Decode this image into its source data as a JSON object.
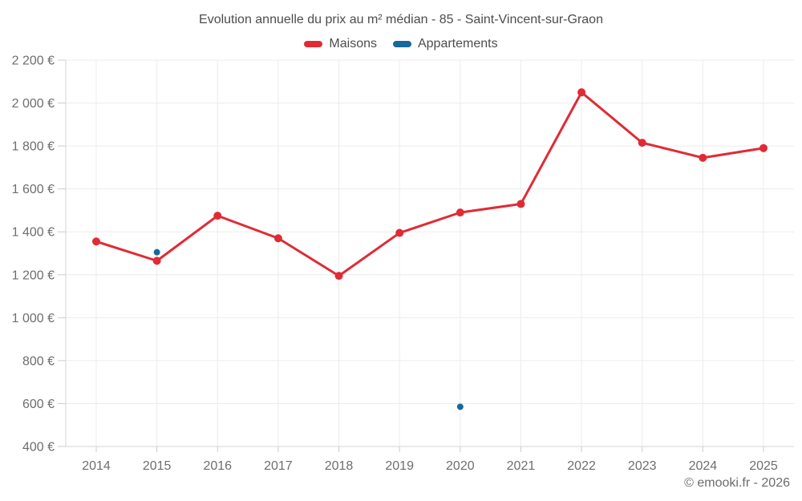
{
  "chart_data": {
    "type": "line",
    "title": "Evolution annuelle du prix au m² médian - 85 - Saint-Vincent-sur-Graon",
    "categories": [
      "2014",
      "2015",
      "2016",
      "2017",
      "2018",
      "2019",
      "2020",
      "2021",
      "2022",
      "2023",
      "2024",
      "2025"
    ],
    "series": [
      {
        "name": "Maisons",
        "color": "#e02b35",
        "style": "line-with-markers",
        "values": [
          1355,
          1265,
          1475,
          1370,
          1195,
          1395,
          1490,
          1530,
          2050,
          1815,
          1745,
          1790
        ]
      },
      {
        "name": "Appartements",
        "color": "#17699c",
        "style": "markers-only",
        "values": [
          null,
          1305,
          null,
          null,
          null,
          null,
          585,
          null,
          null,
          null,
          null,
          null
        ]
      }
    ],
    "ylim": [
      400,
      2200
    ],
    "y_tick_step": 200,
    "y_ticks": [
      {
        "value": 2200,
        "label": "2 200 €"
      },
      {
        "value": 2000,
        "label": "2 000 €"
      },
      {
        "value": 1800,
        "label": "1 800 €"
      },
      {
        "value": 1600,
        "label": "1 600 €"
      },
      {
        "value": 1400,
        "label": "1 400 €"
      },
      {
        "value": 1200,
        "label": "1 200 €"
      },
      {
        "value": 1000,
        "label": "1 000 €"
      },
      {
        "value": 800,
        "label": "800 €"
      },
      {
        "value": 600,
        "label": "600 €"
      },
      {
        "value": 400,
        "label": "400 €"
      }
    ],
    "grid": true,
    "legend_position": "top",
    "xlabel": "",
    "ylabel": ""
  },
  "footer": {
    "copyright": "© emooki.fr - 2026"
  },
  "colors": {
    "grid_line": "#ececec",
    "axis_line": "#d6d6d6",
    "tick_mark": "#cccccc",
    "tick_text": "#6e6e6e",
    "title_text": "#4d4d4d"
  }
}
